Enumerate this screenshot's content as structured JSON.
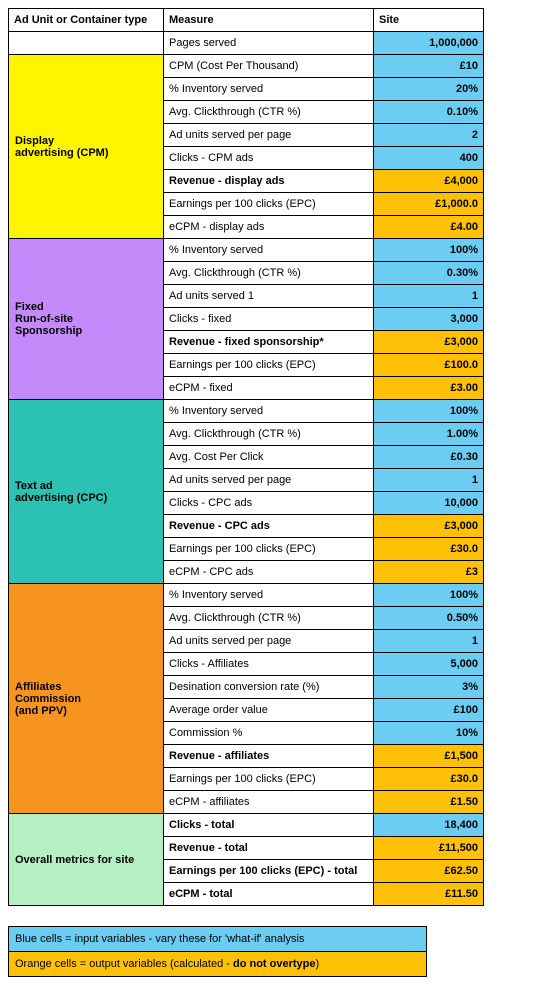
{
  "colors": {
    "blue": "#6acdf1",
    "orange": "#ffc107",
    "white": "#ffffff",
    "display": "#fff500",
    "fixed": "#c58af9",
    "textad": "#2bc2b4",
    "affiliates": "#f79420",
    "overall": "#b5efc4"
  },
  "widths": {
    "col1": 155,
    "col2": 210,
    "col3": 110
  },
  "headers": {
    "c1": "Ad Unit or Container type",
    "c2": "Measure",
    "c3": "Site"
  },
  "rows": [
    {
      "cat": "",
      "catColor": "white",
      "span": 1,
      "measure": "Pages served",
      "mBold": false,
      "value": "1,000,000",
      "vColor": "blue"
    },
    {
      "cat": "Display\nadvertising (CPM)",
      "catColor": "display",
      "span": 8,
      "measure": "CPM (Cost Per Thousand)",
      "mBold": false,
      "value": "£10",
      "vColor": "blue"
    },
    {
      "measure": "% Inventory served",
      "mBold": false,
      "value": "20%",
      "vColor": "blue"
    },
    {
      "measure": "Avg. Clickthrough (CTR %)",
      "mBold": false,
      "value": "0.10%",
      "vColor": "blue"
    },
    {
      "measure": "Ad units served per page",
      "mBold": false,
      "value": "2",
      "vColor": "blue"
    },
    {
      "measure": "Clicks - CPM ads",
      "mBold": false,
      "value": "400",
      "vColor": "blue"
    },
    {
      "measure": "Revenue - display ads",
      "mBold": true,
      "value": "£4,000",
      "vColor": "orange"
    },
    {
      "measure": "Earnings per 100 clicks (EPC)",
      "mBold": false,
      "value": "£1,000.0",
      "vColor": "orange"
    },
    {
      "measure": "eCPM - display ads",
      "mBold": false,
      "value": "£4.00",
      "vColor": "orange"
    },
    {
      "cat": "Fixed\nRun-of-site\nSponsorship",
      "catColor": "fixed",
      "span": 7,
      "measure": "% Inventory served",
      "mBold": false,
      "value": "100%",
      "vColor": "blue"
    },
    {
      "measure": "Avg. Clickthrough (CTR %)",
      "mBold": false,
      "value": "0.30%",
      "vColor": "blue"
    },
    {
      "measure": "Ad units served 1",
      "mBold": false,
      "value": "1",
      "vColor": "blue"
    },
    {
      "measure": "Clicks - fixed",
      "mBold": false,
      "value": "3,000",
      "vColor": "blue"
    },
    {
      "measure": "Revenue - fixed sponsorship*",
      "mBold": true,
      "value": "£3,000",
      "vColor": "orange"
    },
    {
      "measure": "Earnings per 100 clicks (EPC)",
      "mBold": false,
      "value": "£100.0",
      "vColor": "orange"
    },
    {
      "measure": "eCPM - fixed",
      "mBold": false,
      "value": "£3.00",
      "vColor": "orange"
    },
    {
      "cat": "Text ad\nadvertising (CPC)",
      "catColor": "textad",
      "span": 8,
      "measure": "% Inventory served",
      "mBold": false,
      "value": "100%",
      "vColor": "blue"
    },
    {
      "measure": "Avg. Clickthrough (CTR %)",
      "mBold": false,
      "value": "1.00%",
      "vColor": "blue"
    },
    {
      "measure": "Avg. Cost Per Click",
      "mBold": false,
      "value": "£0.30",
      "vColor": "blue"
    },
    {
      "measure": "Ad units served per page",
      "mBold": false,
      "value": "1",
      "vColor": "blue"
    },
    {
      "measure": "Clicks - CPC ads",
      "mBold": false,
      "value": "10,000",
      "vColor": "blue"
    },
    {
      "measure": "Revenue - CPC ads",
      "mBold": true,
      "value": "£3,000",
      "vColor": "orange"
    },
    {
      "measure": "Earnings per 100 clicks (EPC)",
      "mBold": false,
      "value": "£30.0",
      "vColor": "orange"
    },
    {
      "measure": "eCPM - CPC ads",
      "mBold": false,
      "value": "£3",
      "vColor": "orange"
    },
    {
      "cat": "Affiliates\nCommission\n(and PPV)",
      "catColor": "affiliates",
      "span": 10,
      "measure": "% Inventory served",
      "mBold": false,
      "value": "100%",
      "vColor": "blue"
    },
    {
      "measure": "Avg. Clickthrough (CTR %)",
      "mBold": false,
      "value": "0.50%",
      "vColor": "blue"
    },
    {
      "measure": "Ad units served per page",
      "mBold": false,
      "value": "1",
      "vColor": "blue"
    },
    {
      "measure": "Clicks - Affiliates",
      "mBold": false,
      "value": "5,000",
      "vColor": "blue"
    },
    {
      "measure": "Desination conversion rate (%)",
      "mBold": false,
      "value": "3%",
      "vColor": "blue"
    },
    {
      "measure": "Average order value",
      "mBold": false,
      "value": "£100",
      "vColor": "blue"
    },
    {
      "measure": "Commission %",
      "mBold": false,
      "value": "10%",
      "vColor": "blue"
    },
    {
      "measure": "Revenue - affiliates",
      "mBold": true,
      "value": "£1,500",
      "vColor": "orange"
    },
    {
      "measure": "Earnings per 100 clicks (EPC)",
      "mBold": false,
      "value": "£30.0",
      "vColor": "orange"
    },
    {
      "measure": "eCPM - affiliates",
      "mBold": false,
      "value": "£1.50",
      "vColor": "orange"
    },
    {
      "cat": "Overall metrics for site",
      "catColor": "overall",
      "span": 4,
      "measure": "Clicks - total",
      "mBold": true,
      "value": "18,400",
      "vColor": "blue"
    },
    {
      "measure": "Revenue - total",
      "mBold": true,
      "value": "£11,500",
      "vColor": "orange"
    },
    {
      "measure": "Earnings per 100 clicks (EPC) - total",
      "mBold": true,
      "value": "£62.50",
      "vColor": "orange"
    },
    {
      "measure": "eCPM - total",
      "mBold": true,
      "value": "£11.50",
      "vColor": "orange"
    }
  ],
  "legend": {
    "blueText": "Blue cells = input variables - vary these for 'what-if' analysis",
    "orangePre": "Orange cells  = output variables (calculated - ",
    "orangeBold": "do not overtype",
    "orangePost": ")"
  }
}
